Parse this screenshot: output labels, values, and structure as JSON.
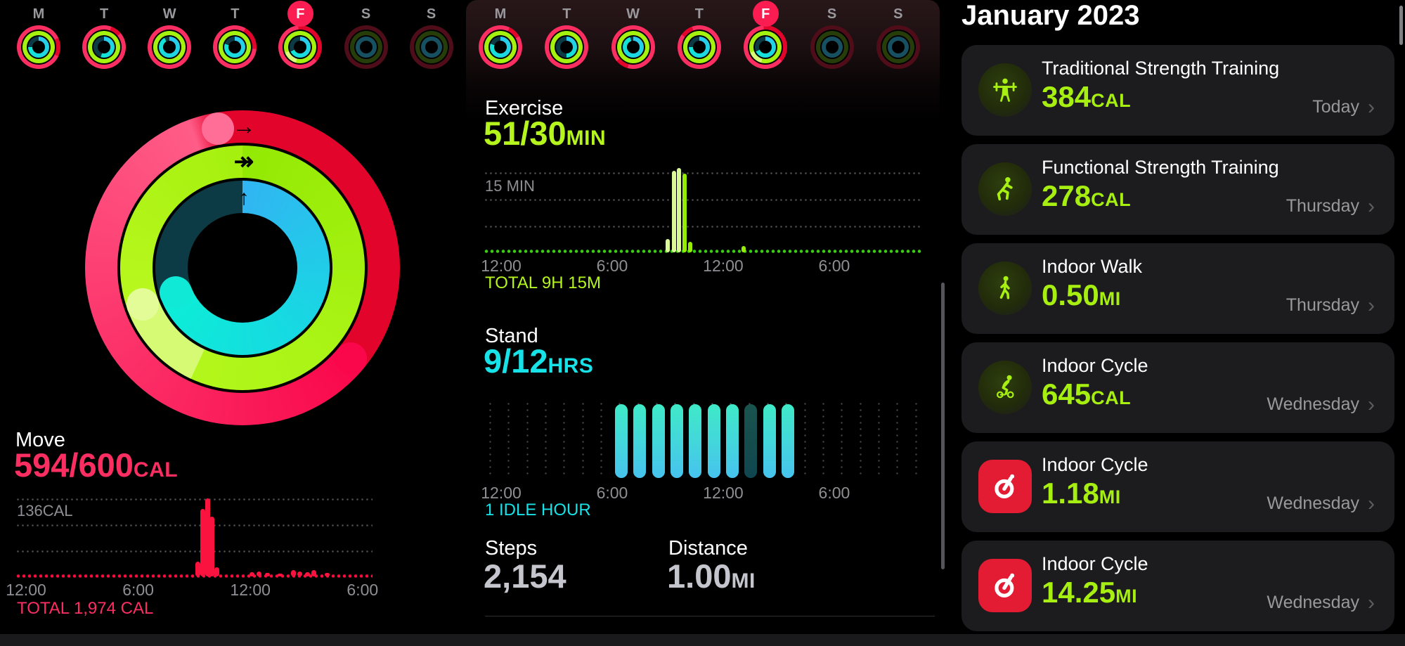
{
  "colors": {
    "move_pink": "#fb2e62",
    "move_red": "#e3042c",
    "move_bar": "#fb1340",
    "ex_green": "#a5f20e",
    "ex_text": "#b5f51d",
    "ex_pale": "#dcf998",
    "ex_bright": "#97ec06",
    "stand_cyan": "#17e2e8",
    "stand_track": "#0d3b45",
    "idle_teal": "#175450",
    "label_gray": "#98989d",
    "axis_gray": "#8e8e93",
    "card_bg": "#1c1c1e",
    "value_green": "#a6ef10",
    "peloton_red": "#e31b33",
    "steps_value": "#c5c5cd",
    "badge_pink": "#fb1d52"
  },
  "week": {
    "left": [
      {
        "label": "M",
        "dim": false,
        "sel": false,
        "move_gap": [
          65,
          115
        ],
        "stand": 0.75
      },
      {
        "label": "T",
        "dim": false,
        "sel": false,
        "move_gap": [
          20,
          50
        ],
        "stand": 0.55
      },
      {
        "label": "W",
        "dim": false,
        "sel": false,
        "move_gap": null,
        "stand": 0.92
      },
      {
        "label": "T",
        "dim": false,
        "sel": false,
        "move_gap": [
          30,
          95
        ],
        "stand": 0.8
      },
      {
        "label": "F",
        "dim": false,
        "sel": true,
        "move_gap": [
          355,
          130
        ],
        "stand": 0.68,
        "ex_overlap": [
          195,
          250
        ]
      },
      {
        "label": "S",
        "dim": true,
        "sel": false
      },
      {
        "label": "S",
        "dim": true,
        "sel": false
      }
    ],
    "mid": [
      {
        "label": "M",
        "dim": false,
        "sel": false,
        "move_gap": [
          25,
          60
        ],
        "stand": 0.8
      },
      {
        "label": "T",
        "dim": false,
        "sel": false,
        "move_gap": null,
        "stand": 0.5
      },
      {
        "label": "W",
        "dim": false,
        "sel": false,
        "move_gap": [
          195,
          230
        ],
        "stand": 0.95
      },
      {
        "label": "T",
        "dim": false,
        "sel": false,
        "move_gap": [
          305,
          340
        ],
        "stand": 0.75
      },
      {
        "label": "F",
        "dim": false,
        "sel": true,
        "move_gap": [
          355,
          130
        ],
        "stand": 0.68,
        "ex_overlap": [
          195,
          250
        ]
      },
      {
        "label": "S",
        "dim": true,
        "sel": false
      },
      {
        "label": "S",
        "dim": true,
        "sel": false
      }
    ]
  },
  "rings": {
    "move": {
      "value": 594,
      "goal": 600,
      "arc_start_deg": 130,
      "arc_end_deg": 350
    },
    "exercise": {
      "value": 51,
      "goal": 30,
      "overlap_start_deg": 205,
      "overlap_end_deg": 250
    },
    "stand": {
      "value": 9,
      "goal": 12,
      "arc_end_deg": 250
    }
  },
  "move": {
    "label": "Move",
    "value": "594/600",
    "unit": "CAL",
    "grid_label": "136CAL",
    "total": "TOTAL 1,974 CAL",
    "axis": [
      "12:00",
      "6:00",
      "12:00",
      "6:00"
    ]
  },
  "exercise": {
    "label": "Exercise",
    "value": "51/30",
    "unit": "MIN",
    "grid_label": "15 MIN",
    "total": "TOTAL 9H 15M",
    "axis": [
      "12:00",
      "6:00",
      "12:00",
      "6:00"
    ]
  },
  "stand": {
    "label": "Stand",
    "value": "9/12",
    "unit": "HRS",
    "idle_note": "1 IDLE HOUR",
    "axis": [
      "12:00",
      "6:00",
      "12:00",
      "6:00"
    ]
  },
  "steps": {
    "label": "Steps",
    "value": "2,154"
  },
  "distance": {
    "label": "Distance",
    "value": "1.00",
    "unit": "MI"
  },
  "workouts": {
    "title": "January 2023",
    "items": [
      {
        "icon": "strength-traditional-icon",
        "title": "Traditional Strength Training",
        "value": "384",
        "unit": "CAL",
        "when": "Today"
      },
      {
        "icon": "strength-functional-icon",
        "title": "Functional Strength Training",
        "value": "278",
        "unit": "CAL",
        "when": "Thursday"
      },
      {
        "icon": "indoor-walk-icon",
        "title": "Indoor Walk",
        "value": "0.50",
        "unit": "MI",
        "when": "Thursday"
      },
      {
        "icon": "indoor-cycle-icon",
        "title": "Indoor Cycle",
        "value": "645",
        "unit": "CAL",
        "when": "Wednesday"
      },
      {
        "icon": "peloton-icon",
        "title": "Indoor Cycle",
        "value": "1.18",
        "unit": "MI",
        "when": "Wednesday"
      },
      {
        "icon": "peloton-icon",
        "title": "Indoor Cycle",
        "value": "14.25",
        "unit": "MI",
        "when": "Wednesday"
      }
    ]
  },
  "chart_data": [
    {
      "name": "move",
      "type": "bar",
      "ylabel": "calories",
      "ylim": [
        0,
        136
      ],
      "goal_line_cal": 136,
      "total_cal": 1974,
      "x_axis": [
        "12:00",
        "6:00",
        "12:00",
        "6:00"
      ],
      "bars": [
        {
          "hour": 9.2,
          "cal": 26
        },
        {
          "hour": 9.45,
          "cal": 118
        },
        {
          "hour": 9.7,
          "cal": 136
        },
        {
          "hour": 9.95,
          "cal": 104
        },
        {
          "hour": 10.2,
          "cal": 16
        },
        {
          "hour": 12.1,
          "cal": 7
        },
        {
          "hour": 12.45,
          "cal": 9
        },
        {
          "hour": 12.9,
          "cal": 6
        },
        {
          "hour": 13.6,
          "cal": 5
        },
        {
          "hour": 14.3,
          "cal": 11
        },
        {
          "hour": 14.65,
          "cal": 8
        },
        {
          "hour": 15.05,
          "cal": 7
        },
        {
          "hour": 15.4,
          "cal": 11
        },
        {
          "hour": 16.1,
          "cal": 6
        }
      ]
    },
    {
      "name": "exercise",
      "type": "bar",
      "ylabel": "minutes",
      "ylim": [
        0,
        15
      ],
      "ref_line_min": 15,
      "total": "9H 15M",
      "x_axis": [
        "12:00",
        "6:00",
        "12:00",
        "6:00"
      ],
      "bars": [
        {
          "hour": 9.0,
          "min": 2.5,
          "shade": "pale"
        },
        {
          "hour": 9.35,
          "min": 15.2,
          "shade": "pale"
        },
        {
          "hour": 9.6,
          "min": 15.8,
          "shade": "pale"
        },
        {
          "hour": 9.9,
          "min": 14.8,
          "shade": "bright"
        },
        {
          "hour": 10.2,
          "min": 2,
          "shade": "bright"
        },
        {
          "hour": 13.1,
          "min": 1.2,
          "shade": "bright"
        }
      ]
    },
    {
      "name": "stand",
      "type": "bar",
      "stood": 9,
      "goal": 12,
      "idle": 1,
      "x_axis": [
        "12:00",
        "6:00",
        "12:00",
        "6:00"
      ],
      "hours": [
        {
          "hour": 6.5,
          "state": "stand"
        },
        {
          "hour": 7.5,
          "state": "stand"
        },
        {
          "hour": 8.5,
          "state": "stand"
        },
        {
          "hour": 9.5,
          "state": "stand"
        },
        {
          "hour": 10.5,
          "state": "stand"
        },
        {
          "hour": 11.5,
          "state": "stand"
        },
        {
          "hour": 12.5,
          "state": "stand"
        },
        {
          "hour": 13.5,
          "state": "idle"
        },
        {
          "hour": 14.5,
          "state": "stand"
        },
        {
          "hour": 15.5,
          "state": "stand"
        }
      ]
    }
  ]
}
